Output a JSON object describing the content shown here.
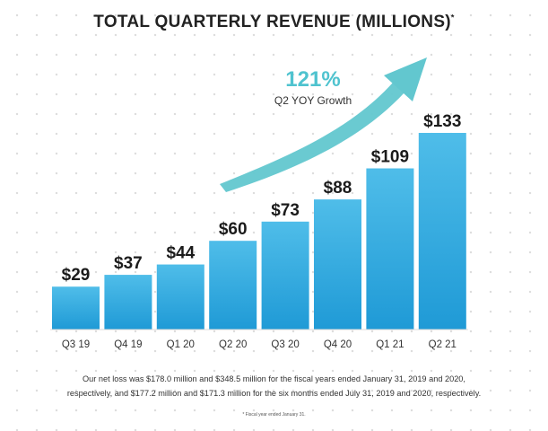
{
  "chart_data": {
    "type": "bar",
    "title": "TOTAL QUARTERLY REVENUE (MILLIONS)",
    "title_marker": "*",
    "categories": [
      "Q3 19",
      "Q4 19",
      "Q1 20",
      "Q2 20",
      "Q3 20",
      "Q4 20",
      "Q1 21",
      "Q2 21"
    ],
    "values": [
      29,
      37,
      44,
      60,
      73,
      88,
      109,
      133
    ],
    "labels": [
      "$29",
      "$37",
      "$44",
      "$60",
      "$73",
      "$88",
      "$109",
      "$133"
    ],
    "ylim": [
      0,
      133
    ],
    "xlabel": "",
    "ylabel": "",
    "grid": false,
    "annotation": {
      "value": "121%",
      "text": "Q2 YOY Growth"
    },
    "colors": {
      "bar_top": "#4fbde9",
      "bar_bottom": "#1f9ad6",
      "arrow": "#62c7cf",
      "annotation": "#4fc3cf"
    }
  },
  "footnote": {
    "line1": "Our net loss was $178.0 million and $348.5 million for the fiscal years ended January 31, 2019 and 2020,",
    "line2": "respectively, and $177.2 million and $171.3 million for the six months ended July 31, 2019 and 2020, respectively."
  },
  "fiscal_note": "* Fiscal year ended January 31."
}
